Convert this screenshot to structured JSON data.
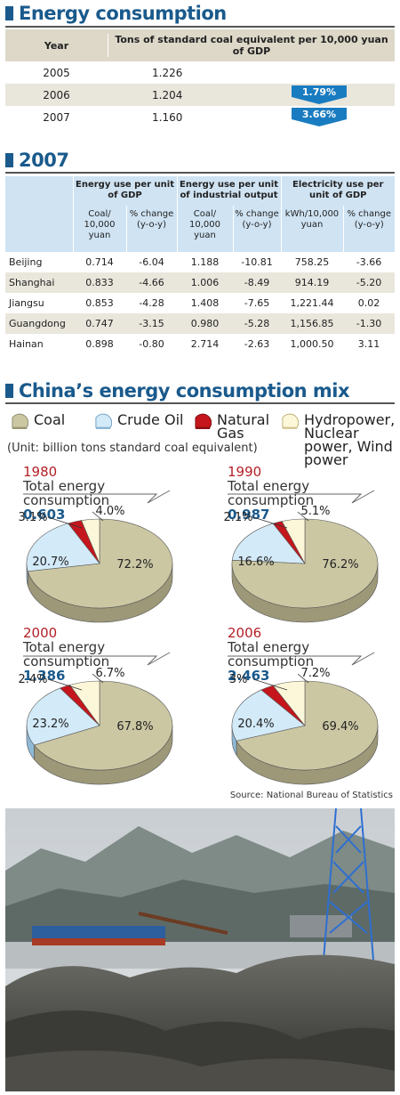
{
  "section1": {
    "title": "Energy consumption"
  },
  "table1": {
    "col_year": "Year",
    "col_value": "Tons of standard coal equivalent per 10,000 yuan of GDP",
    "rows": [
      {
        "year": "2005",
        "value": "1.226",
        "change": ""
      },
      {
        "year": "2006",
        "value": "1.204",
        "change": "1.79%"
      },
      {
        "year": "2007",
        "value": "1.160",
        "change": "3.66%"
      }
    ]
  },
  "section2": {
    "title": "2007"
  },
  "table2": {
    "groups": [
      "Energy use per unit of GDP",
      "Energy use per unit of industrial output",
      "Electricity use  per unit of GDP"
    ],
    "subheaders": [
      "Coal/ 10,000 yuan",
      "% change (y-o-y)",
      "Coal/ 10,000 yuan",
      "% change (y-o-y)",
      "kWh/10,000 yuan",
      "% change (y-o-y)"
    ],
    "rows": [
      {
        "city": "Beijing",
        "v": [
          "0.714",
          "-6.04",
          "1.188",
          "-10.81",
          "758.25",
          "-3.66"
        ]
      },
      {
        "city": "Shanghai",
        "v": [
          "0.833",
          "-4.66",
          "1.006",
          "-8.49",
          "914.19",
          "-5.20"
        ]
      },
      {
        "city": "Jiangsu",
        "v": [
          "0.853",
          "-4.28",
          "1.408",
          "-7.65",
          "1,221.44",
          "0.02"
        ]
      },
      {
        "city": "Guangdong",
        "v": [
          "0.747",
          "-3.15",
          "0.980",
          "-5.28",
          "1,156.85",
          "-1.30"
        ]
      },
      {
        "city": "Hainan",
        "v": [
          "0.898",
          "-0.80",
          "2.714",
          "-2.63",
          "1,000.50",
          "3.11"
        ]
      }
    ]
  },
  "section3": {
    "title": "China’s energy consumption mix"
  },
  "legend": {
    "coal": "Coal",
    "oil": "Crude Oil",
    "gas": "Natural Gas",
    "hydro": "Hydropower, Nuclear power, Wind power"
  },
  "unit_note": "(Unit: billion tons standard coal equivalent)",
  "total_label": "Total energy consumption",
  "source": "Source: National Bureau of Statistics",
  "colors": {
    "coal": "#cbc7a3",
    "oil": "#d3eaf8",
    "gas": "#c4161c",
    "hydro": "#fdf7d9",
    "title": "#1a5a8c",
    "year": "#b42026"
  },
  "chart_data": [
    {
      "type": "pie",
      "title": "1980",
      "total": "0.603",
      "categories": [
        "Coal",
        "Crude Oil",
        "Natural Gas",
        "Hydropower, Nuclear power, Wind power"
      ],
      "values": [
        72.2,
        20.7,
        3.1,
        4.0
      ],
      "labels": [
        "72.2%",
        "20.7%",
        "3.1%",
        "4.0%"
      ]
    },
    {
      "type": "pie",
      "title": "1990",
      "total": "0.987",
      "categories": [
        "Coal",
        "Crude Oil",
        "Natural Gas",
        "Hydropower, Nuclear power, Wind power"
      ],
      "values": [
        76.2,
        16.6,
        2.1,
        5.1
      ],
      "labels": [
        "76.2%",
        "16.6%",
        "2.1%",
        "5.1%"
      ]
    },
    {
      "type": "pie",
      "title": "2000",
      "total": "1.386",
      "categories": [
        "Coal",
        "Crude Oil",
        "Natural Gas",
        "Hydropower, Nuclear power, Wind power"
      ],
      "values": [
        67.8,
        23.2,
        2.4,
        6.7
      ],
      "labels": [
        "67.8%",
        "23.2%",
        "2.4%",
        "6.7%"
      ]
    },
    {
      "type": "pie",
      "title": "2006",
      "total": "2.463",
      "categories": [
        "Coal",
        "Crude Oil",
        "Natural Gas",
        "Hydropower, Nuclear power, Wind power"
      ],
      "values": [
        69.4,
        20.4,
        3,
        7.2
      ],
      "labels": [
        "69.4%",
        "20.4%",
        "3%",
        "7.2%"
      ]
    }
  ]
}
